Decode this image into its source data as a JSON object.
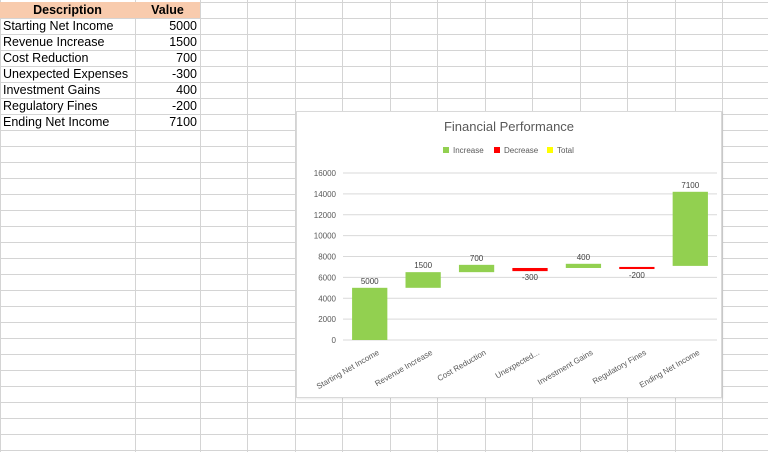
{
  "table": {
    "headers": [
      "Description",
      "Value"
    ],
    "rows": [
      {
        "description": "Starting Net Income",
        "value": "5000"
      },
      {
        "description": "Revenue Increase",
        "value": "1500"
      },
      {
        "description": "Cost Reduction",
        "value": "700"
      },
      {
        "description": "Unexpected Expenses",
        "value": "-300"
      },
      {
        "description": "Investment Gains",
        "value": "400"
      },
      {
        "description": "Regulatory Fines",
        "value": "-200"
      },
      {
        "description": "Ending Net Income",
        "value": "7100"
      }
    ]
  },
  "colors": {
    "header_fill": "#F8CBAD",
    "increase": "#92D050",
    "decrease": "#FF0000",
    "total": "#FFFF00"
  },
  "chart_data": {
    "type": "bar",
    "subtype": "waterfall",
    "title": "Financial Performance",
    "legend": [
      "Increase",
      "Decrease",
      "Total"
    ],
    "legend_position": "top",
    "categories": [
      "Starting Net Income",
      "Revenue Increase",
      "Cost Reduction",
      "Unexpected...",
      "Investment Gains",
      "Regulatory Fines",
      "Ending Net Income"
    ],
    "values": [
      5000,
      1500,
      700,
      -300,
      400,
      -200,
      7100
    ],
    "bar_base": [
      0,
      5000,
      6500,
      6900,
      6900,
      7000,
      7100
    ],
    "data_labels": [
      "5000",
      "1500",
      "700",
      "-300",
      "400",
      "-200",
      "7100"
    ],
    "ylim": [
      0,
      16000
    ],
    "yticks": [
      "0",
      "2000",
      "4000",
      "6000",
      "8000",
      "10000",
      "12000",
      "14000",
      "16000"
    ],
    "grid": true
  }
}
